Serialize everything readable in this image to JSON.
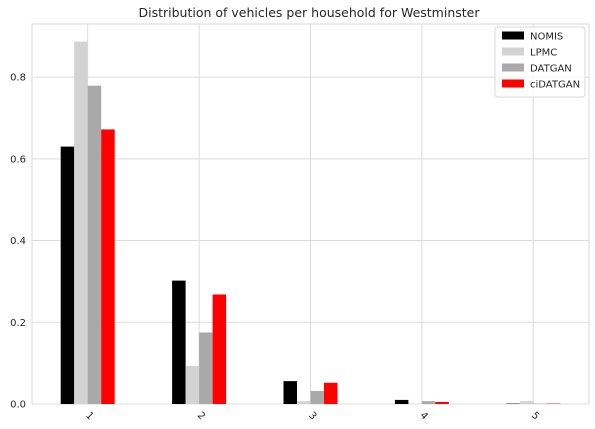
{
  "chart_data": {
    "type": "bar",
    "title": "Distribution of vehicles per household for Westminster",
    "xlabel": "",
    "ylabel": "",
    "categories": [
      "1",
      "2",
      "3",
      "4",
      "5"
    ],
    "ylim": [
      0,
      0.93
    ],
    "yticks": [
      0.0,
      0.2,
      0.4,
      0.6,
      0.8
    ],
    "ytick_labels": [
      "0.0",
      "0.2",
      "0.4",
      "0.6",
      "0.8"
    ],
    "grid": true,
    "legend_position": "top-right",
    "series": [
      {
        "name": "NOMIS",
        "color": "#000000",
        "values": [
          0.63,
          0.302,
          0.056,
          0.01,
          0.001
        ]
      },
      {
        "name": "LPMC",
        "color": "#d3d3d3",
        "values": [
          0.887,
          0.093,
          0.007,
          0.001,
          0.007
        ]
      },
      {
        "name": "DATGAN",
        "color": "#a9a9a9",
        "values": [
          0.779,
          0.175,
          0.032,
          0.007,
          0.001
        ]
      },
      {
        "name": "ciDATGAN",
        "color": "#ff0000",
        "values": [
          0.672,
          0.268,
          0.052,
          0.005,
          0.001
        ]
      }
    ]
  }
}
